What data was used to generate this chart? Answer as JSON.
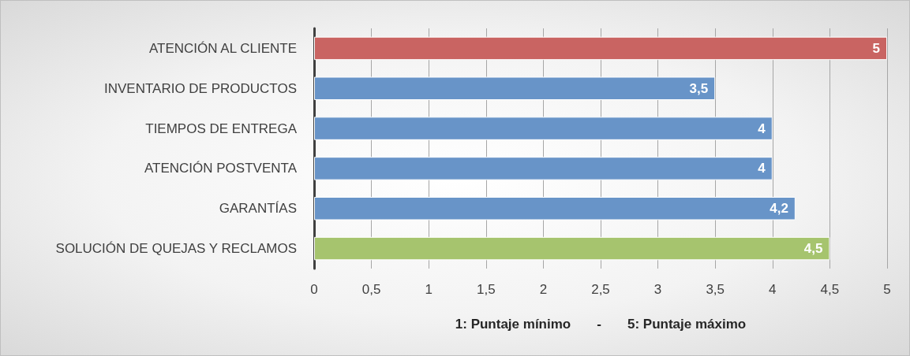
{
  "chart_data": {
    "type": "bar",
    "orientation": "horizontal",
    "xlabel": "1: Puntaje mínimo       -       5: Puntaje máximo",
    "categories": [
      "ATENCIÓN AL CLIENTE",
      "INVENTARIO DE PRODUCTOS",
      "TIEMPOS DE ENTREGA",
      "ATENCIÓN POSTVENTA",
      "GARANTÍAS",
      "SOLUCIÓN DE QUEJAS Y RECLAMOS"
    ],
    "values": [
      5,
      3.5,
      4,
      4,
      4.2,
      4.5
    ],
    "colors": [
      "#c96462",
      "#6894c8",
      "#6894c8",
      "#6894c8",
      "#6894c8",
      "#a6c46e"
    ],
    "value_labels": [
      "5",
      "3,5",
      "4",
      "4",
      "4,2",
      "4,5"
    ],
    "xlim": [
      0,
      5
    ],
    "xticks": [
      0,
      {
        "value": 0.5,
        "label": "0,5"
      },
      1,
      {
        "value": 1.5,
        "label": "1,5"
      },
      2,
      {
        "value": 2.5,
        "label": "2,5"
      },
      3,
      {
        "value": 3.5,
        "label": "3,5"
      },
      4,
      {
        "value": 4.5,
        "label": "4,5"
      },
      5
    ],
    "grid": "x"
  }
}
